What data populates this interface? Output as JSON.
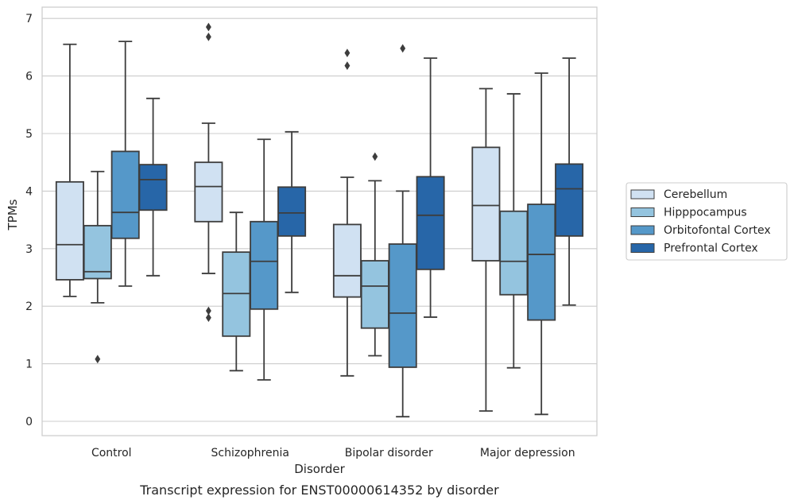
{
  "chart_data": {
    "type": "box",
    "xlabel": "Disorder",
    "ylabel": "TPMs",
    "caption": "Transcript expression for ENST00000614352 by disorder",
    "ylim": [
      -0.25,
      7.2
    ],
    "yticks": [
      0,
      1,
      2,
      3,
      4,
      5,
      6,
      7
    ],
    "grid": true,
    "legend_position": "right",
    "categories": [
      "Control",
      "Schizophrenia",
      "Bipolar disorder",
      "Major depression"
    ],
    "series": [
      {
        "name": "Cerebellum",
        "color": "#d0e1f2",
        "boxes": [
          {
            "whislo": 2.17,
            "q1": 2.46,
            "med": 3.07,
            "q3": 4.16,
            "whishi": 6.55,
            "fliers": []
          },
          {
            "whislo": 2.57,
            "q1": 3.47,
            "med": 4.08,
            "q3": 4.5,
            "whishi": 5.18,
            "fliers": [
              6.68,
              6.85,
              1.92,
              1.8
            ]
          },
          {
            "whislo": 0.79,
            "q1": 2.16,
            "med": 2.53,
            "q3": 3.42,
            "whishi": 4.24,
            "fliers": [
              6.4,
              6.18
            ]
          },
          {
            "whislo": 0.18,
            "q1": 2.79,
            "med": 3.75,
            "q3": 4.76,
            "whishi": 5.78,
            "fliers": []
          }
        ]
      },
      {
        "name": "Hipppocampus",
        "color": "#94c4df",
        "boxes": [
          {
            "whislo": 2.06,
            "q1": 2.48,
            "med": 2.6,
            "q3": 3.4,
            "whishi": 4.34,
            "fliers": [
              1.08
            ]
          },
          {
            "whislo": 0.88,
            "q1": 1.48,
            "med": 2.22,
            "q3": 2.94,
            "whishi": 3.63,
            "fliers": []
          },
          {
            "whislo": 1.14,
            "q1": 1.62,
            "med": 2.35,
            "q3": 2.79,
            "whishi": 4.18,
            "fliers": [
              4.6
            ]
          },
          {
            "whislo": 0.93,
            "q1": 2.2,
            "med": 2.78,
            "q3": 3.65,
            "whishi": 5.69,
            "fliers": []
          }
        ]
      },
      {
        "name": "Orbitofontal Cortex",
        "color": "#5598c9",
        "boxes": [
          {
            "whislo": 2.35,
            "q1": 3.18,
            "med": 3.63,
            "q3": 4.69,
            "whishi": 6.6,
            "fliers": []
          },
          {
            "whislo": 0.72,
            "q1": 1.95,
            "med": 2.78,
            "q3": 3.47,
            "whishi": 4.9,
            "fliers": []
          },
          {
            "whislo": 0.08,
            "q1": 0.94,
            "med": 1.88,
            "q3": 3.08,
            "whishi": 4.0,
            "fliers": [
              6.48
            ]
          },
          {
            "whislo": 0.12,
            "q1": 1.76,
            "med": 2.9,
            "q3": 3.77,
            "whishi": 6.05,
            "fliers": []
          }
        ]
      },
      {
        "name": "Prefrontal Cortex",
        "color": "#2766a8",
        "boxes": [
          {
            "whislo": 2.53,
            "q1": 3.67,
            "med": 4.2,
            "q3": 4.46,
            "whishi": 5.61,
            "fliers": []
          },
          {
            "whislo": 2.24,
            "q1": 3.22,
            "med": 3.62,
            "q3": 4.07,
            "whishi": 5.03,
            "fliers": []
          },
          {
            "whislo": 1.81,
            "q1": 2.64,
            "med": 3.58,
            "q3": 4.25,
            "whishi": 6.31,
            "fliers": []
          },
          {
            "whislo": 2.02,
            "q1": 3.22,
            "med": 4.04,
            "q3": 4.47,
            "whishi": 6.31,
            "fliers": []
          }
        ]
      }
    ]
  }
}
